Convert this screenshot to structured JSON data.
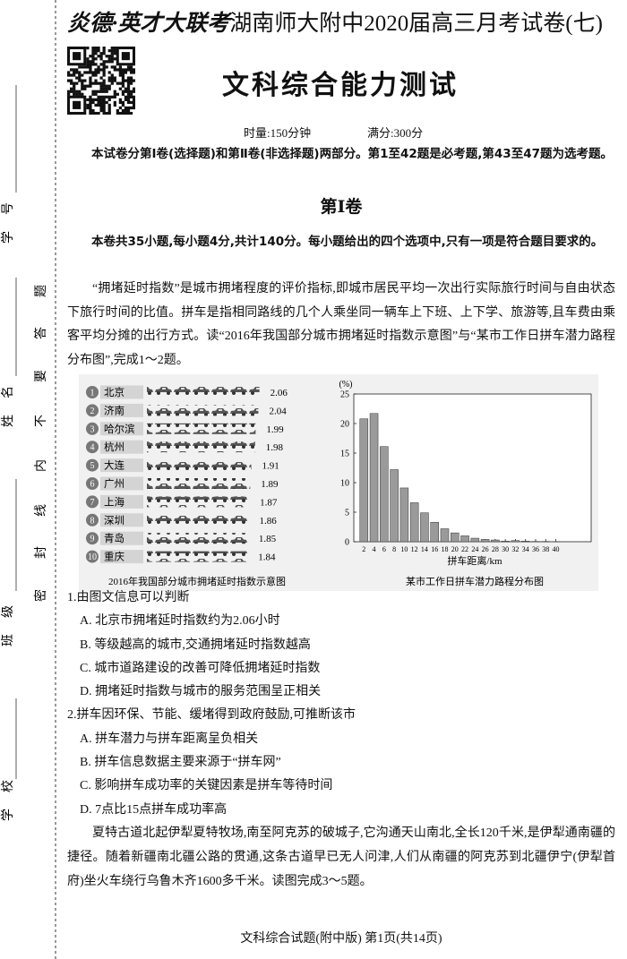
{
  "header": {
    "brand": "炎德·英才大联考",
    "exam": "湖南师大附中2020届高三月考试卷(七)",
    "subject": "文科综合能力测试",
    "time": "时量:150分钟",
    "score": "满分:300分"
  },
  "intro": "本试卷分第Ⅰ卷(选择题)和第Ⅱ卷(非选择题)两部分。第1至42题是必考题,第43至47题为选考题。",
  "section": "第Ⅰ卷",
  "instructions": "本卷共35小题,每小题4分,共计140分。每小题给出的四个选项中,只有一项是符合题目要求的。",
  "passage1": "“拥堵延时指数”是城市拥堵程度的评价指标,即城市居民平均一次出行实际旅行时间与自由状态下旅行时间的比值。拼车是指相同路线的几个人乘坐同一辆车上下班、上下学、旅游等,且车费由乘客平均分摊的出行方式。读“2016年我国部分城市拥堵延时指数示意图”与“某市工作日拼车潜力路程分布图”,完成1～2题。",
  "figures": [
    {
      "type": "bar",
      "caption": "2016年我国部分城市拥堵延时指数示意图",
      "ranks": [
        1,
        2,
        3,
        4,
        5,
        6,
        7,
        8,
        9,
        10
      ],
      "categories": [
        "北京",
        "济南",
        "哈尔滨",
        "杭州",
        "大连",
        "广州",
        "上海",
        "深圳",
        "青岛",
        "重庆"
      ],
      "values": [
        2.06,
        2.04,
        1.99,
        1.98,
        1.91,
        1.89,
        1.87,
        1.86,
        1.85,
        1.84
      ],
      "color": "#555555"
    },
    {
      "type": "histogram",
      "caption": "某市工作日拼车潜力路程分布图",
      "ylabel": "(%)",
      "xlabel": "拼车距离/km",
      "x": [
        2,
        4,
        6,
        8,
        10,
        12,
        14,
        16,
        18,
        20,
        22,
        24,
        26,
        28,
        30,
        32,
        34,
        36,
        38,
        40
      ],
      "values": [
        20.8,
        21.7,
        16.1,
        12.2,
        9.1,
        6.6,
        4.9,
        3.3,
        2.2,
        1.5,
        1.0,
        0.6,
        0.4,
        0.3,
        0.1,
        0.2,
        0.1,
        0.05,
        0.05,
        0.02
      ],
      "color": "#9a9a9a",
      "xlim": [
        0,
        47
      ],
      "ylim": [
        0,
        25
      ],
      "xticks": [
        2,
        4,
        6,
        8,
        10,
        12,
        14,
        16,
        18,
        20,
        22,
        24,
        26,
        28,
        30,
        32,
        34,
        36,
        38,
        40
      ],
      "yticks": [
        0,
        5,
        10,
        15,
        20,
        25
      ]
    }
  ],
  "questions": [
    {
      "stem": "1.由图文信息可以判断",
      "options": [
        "A. 北京市拥堵延时指数约为2.06小时",
        "B. 等级越高的城市,交通拥堵延时指数越高",
        "C. 城市道路建设的改善可降低拥堵延时指数",
        "D. 拥堵延时指数与城市的服务范围呈正相关"
      ]
    },
    {
      "stem": "2.拼车因环保、节能、缓堵得到政府鼓励,可推断该市",
      "options": [
        "A. 拼车潜力与拼车距离呈负相关",
        "B. 拼车信息数据主要来源于“拼车网”",
        "C. 影响拼车成功率的关键因素是拼车等待时间",
        "D. 7点比15点拼车成功率高"
      ]
    }
  ],
  "passage2": "夏特古道北起伊犁夏特牧场,南至阿克苏的破城子,它沟通天山南北,全长120千米,是伊犁通南疆的捷径。随着新疆南北疆公路的贯通,这条古道早已无人问津,人们从南疆的阿克苏到北疆伊宁(伊犁首府)坐火车绕行乌鲁木齐1600多千米。读图完成3～5题。",
  "footer": "文科综合试题(附中版) 第1页(共14页)",
  "binding": {
    "fields": [
      "学号",
      "姓名",
      "班级",
      "学校"
    ],
    "seal": [
      "密",
      "封",
      "线",
      "内",
      "不",
      "要",
      "答",
      "题"
    ]
  }
}
